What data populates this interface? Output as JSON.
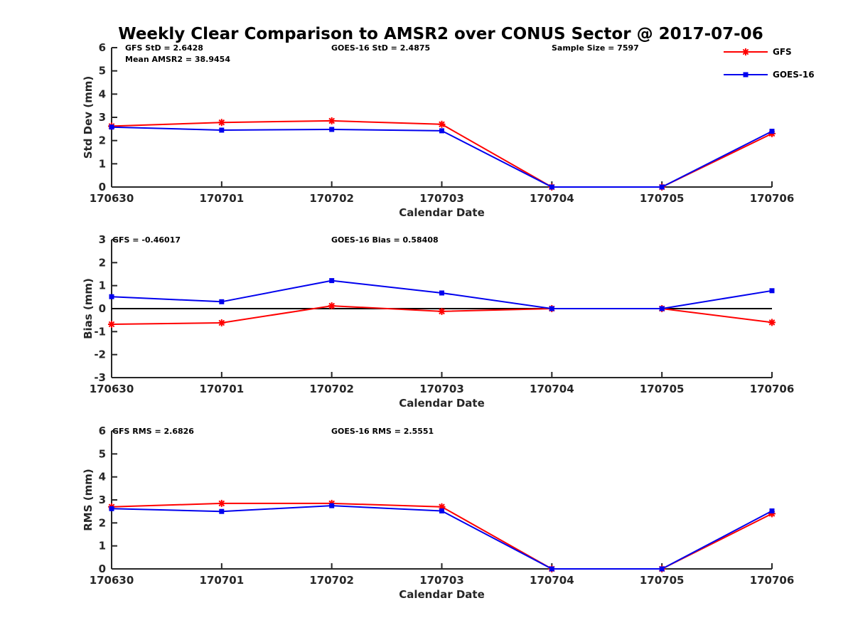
{
  "figure": {
    "title": "Weekly Clear Comparison to AMSR2 over CONUS Sector @ 2017-07-06",
    "legend": {
      "placement": "top-right",
      "entries": [
        {
          "name": "GFS",
          "color": "#ff0000",
          "marker": "asterisk"
        },
        {
          "name": "GOES-16",
          "color": "#0000ee",
          "marker": "square"
        }
      ]
    }
  },
  "chart_data": [
    {
      "type": "line",
      "title": "",
      "xlabel": "Calendar Date",
      "ylabel": "Std Dev (mm)",
      "categories": [
        "170630",
        "170701",
        "170702",
        "170703",
        "170704",
        "170705",
        "170706"
      ],
      "ylim": [
        0,
        6
      ],
      "yticks": [
        "0",
        "1",
        "2",
        "3",
        "4",
        "5",
        "6"
      ],
      "grid": false,
      "annotations": {
        "left": "GFS StD = 2.6428",
        "left2": "Mean AMSR2 = 38.9454",
        "center": "GOES-16 StD = 2.4875",
        "right": "Sample Size = 7597"
      },
      "series": [
        {
          "name": "GFS",
          "color": "#ff0000",
          "values": [
            2.62,
            2.78,
            2.85,
            2.7,
            0,
            0,
            2.3
          ]
        },
        {
          "name": "GOES-16",
          "color": "#0000ee",
          "values": [
            2.58,
            2.45,
            2.48,
            2.42,
            0,
            0,
            2.4
          ]
        }
      ]
    },
    {
      "type": "line",
      "title": "",
      "xlabel": "Calendar Date",
      "ylabel": "Bias (mm)",
      "categories": [
        "170630",
        "170701",
        "170702",
        "170703",
        "170704",
        "170705",
        "170706"
      ],
      "ylim": [
        -3,
        3
      ],
      "yticks": [
        "-3",
        "-2",
        "-1",
        "0",
        "1",
        "2",
        "3"
      ],
      "zero_line": true,
      "grid": false,
      "annotations": {
        "left": "GFS = -0.46017",
        "center": "GOES-16 Bias  = 0.58408"
      },
      "series": [
        {
          "name": "GFS",
          "color": "#ff0000",
          "values": [
            -0.68,
            -0.62,
            0.12,
            -0.12,
            0,
            0,
            -0.6
          ]
        },
        {
          "name": "GOES-16",
          "color": "#0000ee",
          "values": [
            0.52,
            0.3,
            1.22,
            0.68,
            0,
            0,
            0.78
          ]
        }
      ]
    },
    {
      "type": "line",
      "title": "",
      "xlabel": "Calendar Date",
      "ylabel": "RMS (mm)",
      "categories": [
        "170630",
        "170701",
        "170702",
        "170703",
        "170704",
        "170705",
        "170706"
      ],
      "ylim": [
        0,
        6
      ],
      "yticks": [
        "0",
        "1",
        "2",
        "3",
        "4",
        "5",
        "6"
      ],
      "grid": false,
      "annotations": {
        "left": "GFS RMS = 2.6826",
        "center": "GOES-16 RMS = 2.5551"
      },
      "series": [
        {
          "name": "GFS",
          "color": "#ff0000",
          "values": [
            2.7,
            2.85,
            2.85,
            2.7,
            0,
            0,
            2.4
          ]
        },
        {
          "name": "GOES-16",
          "color": "#0000ee",
          "values": [
            2.62,
            2.5,
            2.75,
            2.52,
            0,
            0,
            2.52
          ]
        }
      ]
    }
  ]
}
